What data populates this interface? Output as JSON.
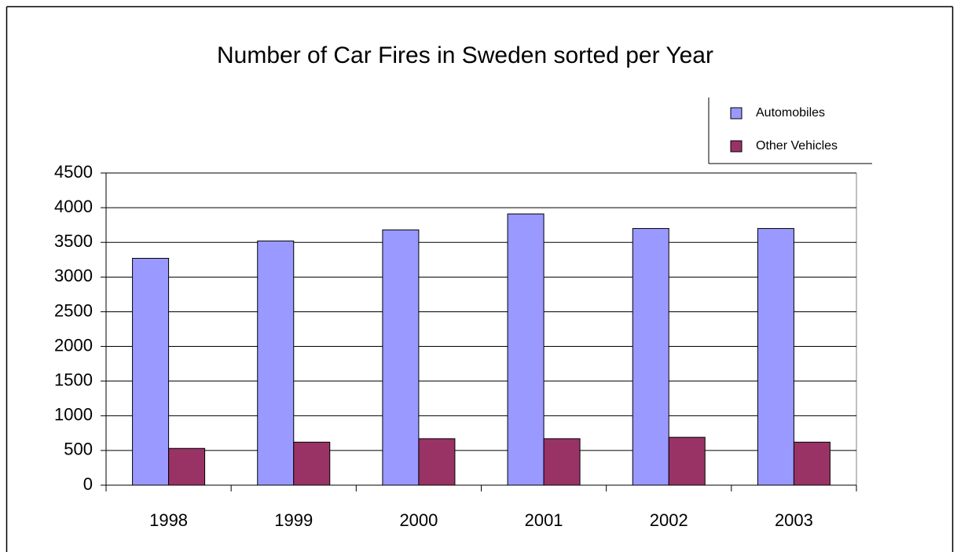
{
  "chart_data": {
    "type": "bar",
    "title": "Number of Car Fires in Sweden sorted per Year",
    "categories": [
      "1998",
      "1999",
      "2000",
      "2001",
      "2002",
      "2003"
    ],
    "series": [
      {
        "name": "Automobiles",
        "color": "#9999ff",
        "values": [
          3270,
          3520,
          3680,
          3910,
          3700,
          3700
        ]
      },
      {
        "name": "Other Vehicles",
        "color": "#993366",
        "values": [
          530,
          620,
          670,
          670,
          690,
          620
        ]
      }
    ],
    "ylim": [
      0,
      4500
    ],
    "yticks": [
      0,
      500,
      1000,
      1500,
      2000,
      2500,
      3000,
      3500,
      4000,
      4500
    ],
    "grid": true,
    "legend": "top-right"
  }
}
